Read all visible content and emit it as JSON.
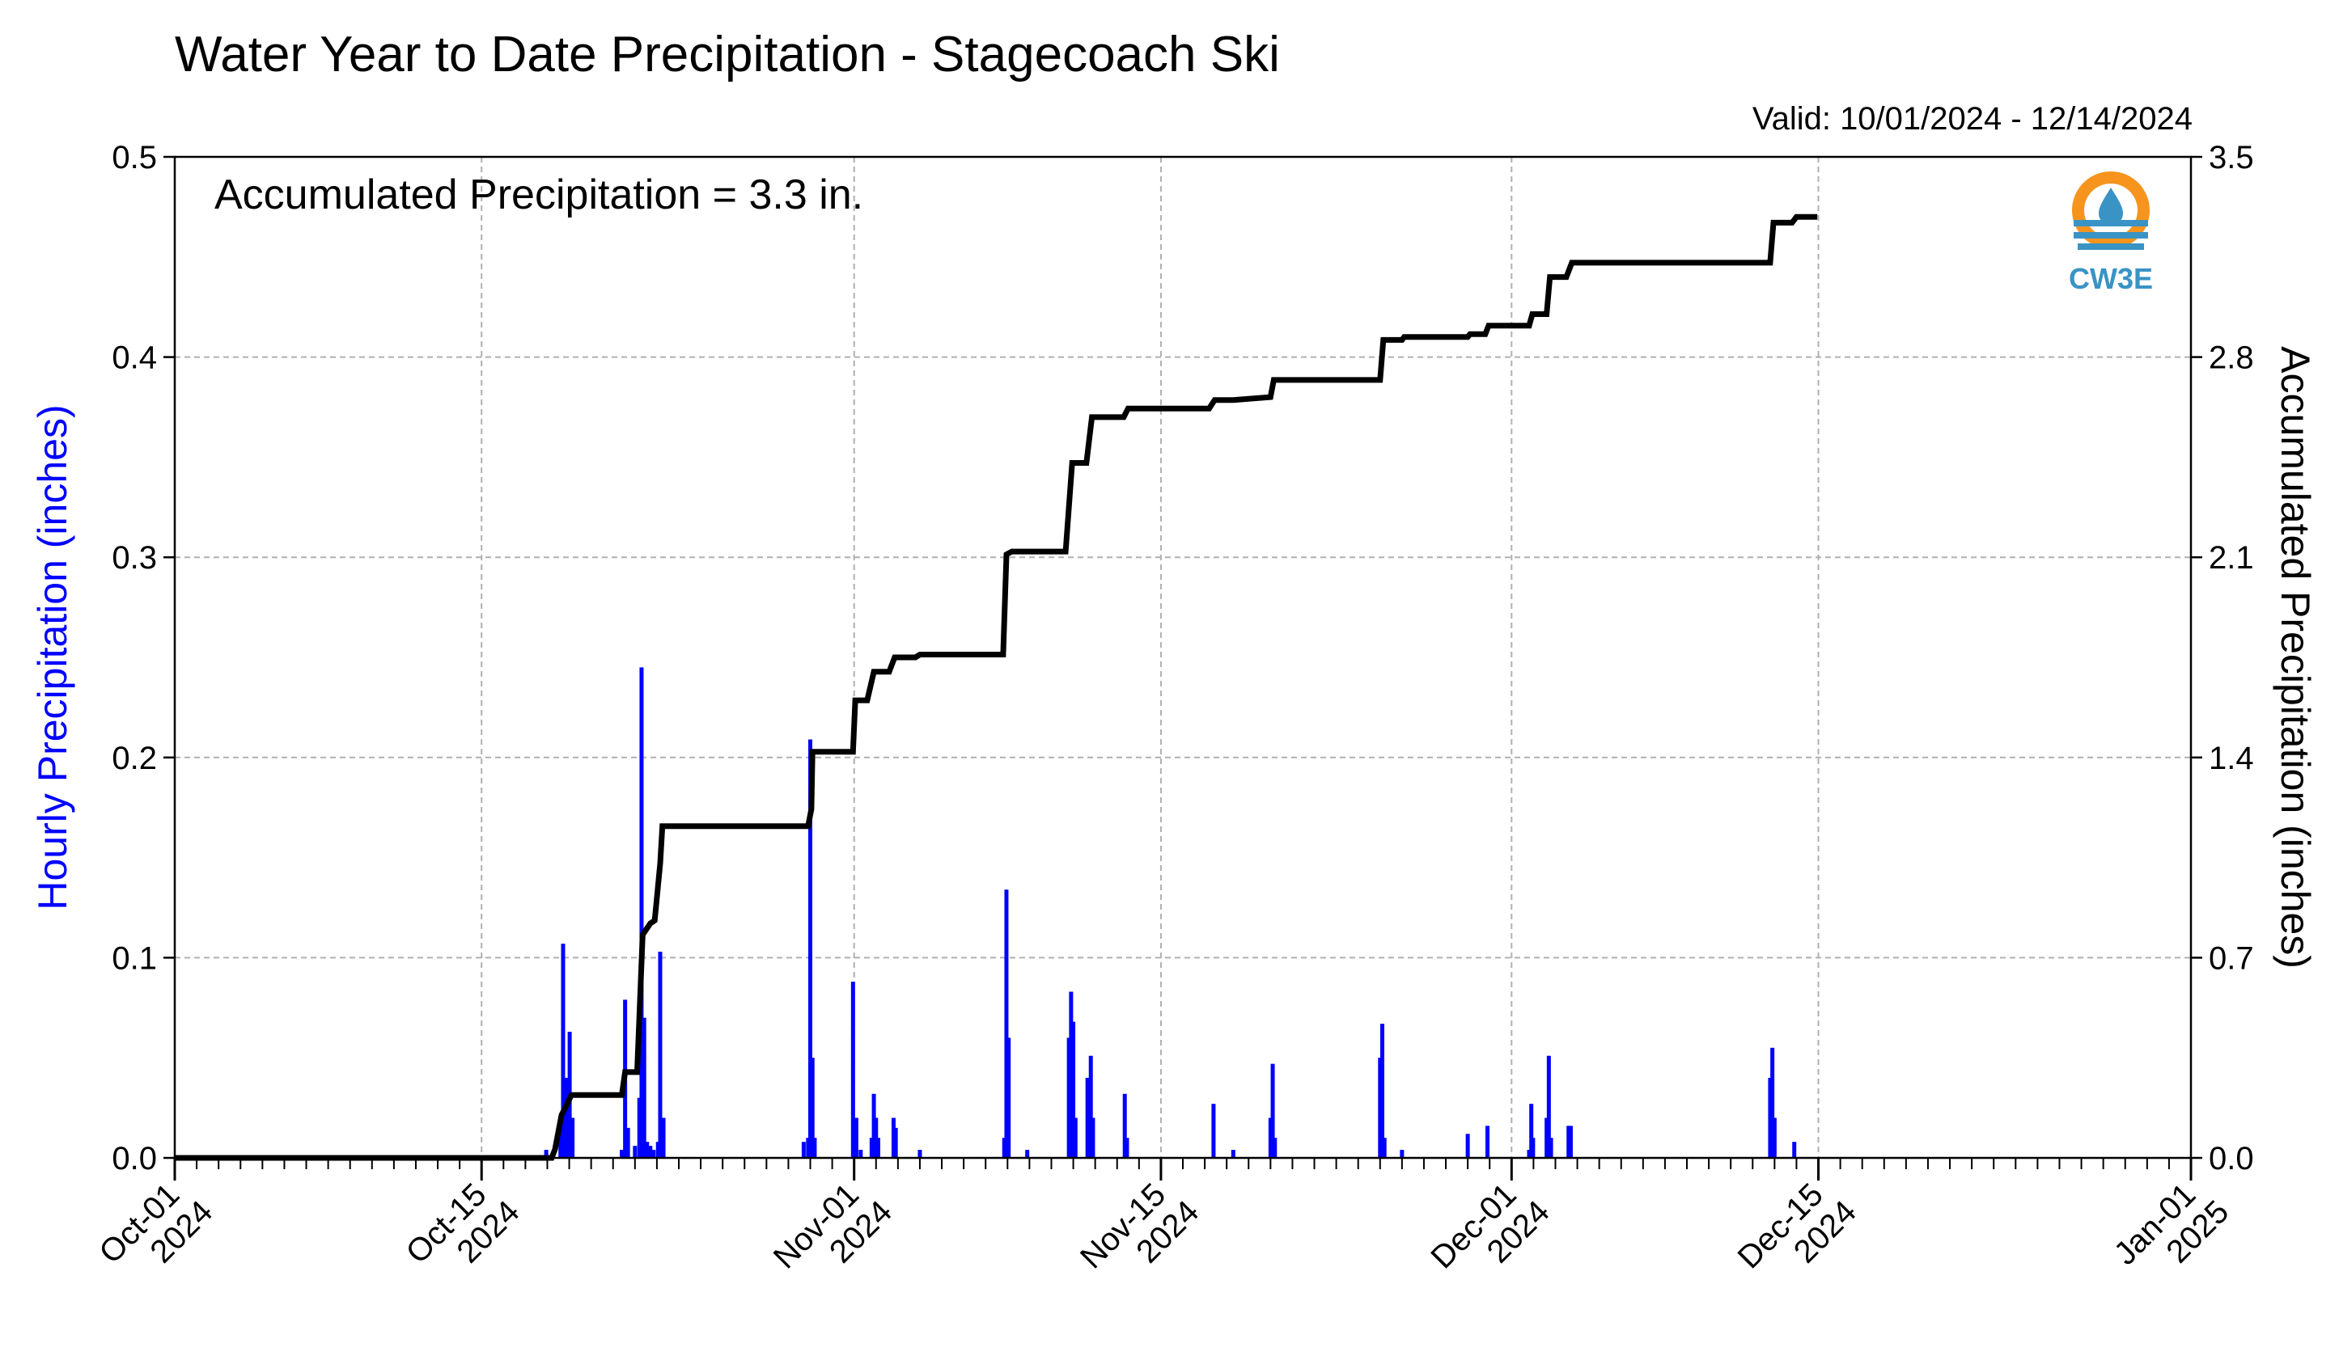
{
  "chart_data": {
    "type": "bar+line",
    "title": "Water Year to Date Precipitation - Stagecoach Ski",
    "valid_label": "Valid: 10/01/2024 - 12/14/2024",
    "annotation": "Accumulated Precipitation = 3.3 in.",
    "logo_text": "CW3E",
    "ylabel_left": "Hourly Precipitation (inches)",
    "ylabel_right": "Accumulated Precipitation (inches)",
    "ylim_left": [
      0,
      0.5
    ],
    "ylim_right": [
      0,
      3.5
    ],
    "xlim_days": [
      0,
      92
    ],
    "grid": true,
    "colors": {
      "bars": "#0000ff",
      "line": "#000000",
      "grid": "#b0b0b0",
      "logo_orange": "#f7941d",
      "logo_blue": "#3a93c5"
    },
    "left_ticks": [
      "0.0",
      "0.1",
      "0.2",
      "0.3",
      "0.4",
      "0.5"
    ],
    "right_ticks": [
      "0.0",
      "0.7",
      "1.4",
      "2.1",
      "2.8",
      "3.5"
    ],
    "x_ticks": [
      {
        "day": 0,
        "line1": "Oct-01",
        "line2": "2024"
      },
      {
        "day": 14,
        "line1": "Oct-15",
        "line2": "2024"
      },
      {
        "day": 31,
        "line1": "Nov-01",
        "line2": "2024"
      },
      {
        "day": 45,
        "line1": "Nov-15",
        "line2": "2024"
      },
      {
        "day": 61,
        "line1": "Dec-01",
        "line2": "2024"
      },
      {
        "day": 75,
        "line1": "Dec-15",
        "line2": "2024"
      },
      {
        "day": 92,
        "line1": "Jan-01",
        "line2": "2025"
      }
    ],
    "series": [
      {
        "name": "Hourly Precipitation",
        "kind": "bar",
        "points": [
          [
            16.95,
            0.004
          ],
          [
            17.6,
            0.015
          ],
          [
            17.72,
            0.107
          ],
          [
            17.85,
            0.04
          ],
          [
            18.02,
            0.063
          ],
          [
            18.15,
            0.02
          ],
          [
            20.4,
            0.004
          ],
          [
            20.55,
            0.079
          ],
          [
            20.68,
            0.015
          ],
          [
            21.0,
            0.006
          ],
          [
            21.2,
            0.03
          ],
          [
            21.3,
            0.245
          ],
          [
            21.42,
            0.07
          ],
          [
            21.55,
            0.008
          ],
          [
            21.7,
            0.006
          ],
          [
            21.85,
            0.004
          ],
          [
            22.05,
            0.008
          ],
          [
            22.15,
            0.103
          ],
          [
            22.3,
            0.02
          ],
          [
            28.7,
            0.008
          ],
          [
            28.9,
            0.01
          ],
          [
            29.0,
            0.209
          ],
          [
            29.1,
            0.05
          ],
          [
            29.2,
            0.01
          ],
          [
            30.95,
            0.088
          ],
          [
            31.1,
            0.02
          ],
          [
            31.3,
            0.004
          ],
          [
            31.8,
            0.01
          ],
          [
            31.9,
            0.032
          ],
          [
            32.0,
            0.02
          ],
          [
            32.1,
            0.01
          ],
          [
            32.8,
            0.02
          ],
          [
            32.9,
            0.015
          ],
          [
            34.0,
            0.004
          ],
          [
            37.85,
            0.01
          ],
          [
            37.95,
            0.134
          ],
          [
            38.05,
            0.06
          ],
          [
            38.9,
            0.004
          ],
          [
            40.8,
            0.06
          ],
          [
            40.9,
            0.083
          ],
          [
            41.0,
            0.068
          ],
          [
            41.1,
            0.02
          ],
          [
            41.65,
            0.04
          ],
          [
            41.8,
            0.051
          ],
          [
            41.9,
            0.02
          ],
          [
            43.35,
            0.032
          ],
          [
            43.45,
            0.01
          ],
          [
            47.4,
            0.027
          ],
          [
            48.3,
            0.004
          ],
          [
            50.0,
            0.02
          ],
          [
            50.1,
            0.047
          ],
          [
            50.2,
            0.01
          ],
          [
            55.0,
            0.05
          ],
          [
            55.1,
            0.067
          ],
          [
            55.2,
            0.01
          ],
          [
            56.0,
            0.004
          ],
          [
            59.0,
            0.012
          ],
          [
            59.9,
            0.016
          ],
          [
            61.8,
            0.004
          ],
          [
            61.9,
            0.027
          ],
          [
            61.98,
            0.01
          ],
          [
            62.6,
            0.02
          ],
          [
            62.7,
            0.051
          ],
          [
            62.8,
            0.01
          ],
          [
            63.6,
            0.016
          ],
          [
            63.7,
            0.016
          ],
          [
            72.8,
            0.04
          ],
          [
            72.9,
            0.055
          ],
          [
            73.0,
            0.02
          ],
          [
            73.9,
            0.008
          ]
        ]
      },
      {
        "name": "Accumulated Precipitation",
        "kind": "step",
        "points": [
          [
            0,
            0
          ],
          [
            17.2,
            0
          ],
          [
            17.35,
            0.03
          ],
          [
            17.65,
            0.15
          ],
          [
            17.85,
            0.18
          ],
          [
            18.1,
            0.22
          ],
          [
            20.4,
            0.22
          ],
          [
            20.55,
            0.3
          ],
          [
            21.1,
            0.3
          ],
          [
            21.35,
            0.78
          ],
          [
            21.7,
            0.82
          ],
          [
            21.9,
            0.83
          ],
          [
            22.15,
            1.03
          ],
          [
            22.25,
            1.16
          ],
          [
            28.9,
            1.16
          ],
          [
            29.05,
            1.22
          ],
          [
            29.1,
            1.42
          ],
          [
            30.95,
            1.42
          ],
          [
            31.05,
            1.6
          ],
          [
            31.6,
            1.6
          ],
          [
            31.9,
            1.7
          ],
          [
            32.6,
            1.7
          ],
          [
            32.85,
            1.75
          ],
          [
            33.8,
            1.75
          ],
          [
            34.0,
            1.76
          ],
          [
            37.8,
            1.76
          ],
          [
            37.95,
            2.11
          ],
          [
            38.2,
            2.12
          ],
          [
            40.65,
            2.12
          ],
          [
            40.95,
            2.43
          ],
          [
            41.6,
            2.43
          ],
          [
            41.85,
            2.59
          ],
          [
            43.3,
            2.59
          ],
          [
            43.5,
            2.62
          ],
          [
            47.2,
            2.62
          ],
          [
            47.45,
            2.65
          ],
          [
            48.3,
            2.65
          ],
          [
            50.0,
            2.66
          ],
          [
            50.15,
            2.72
          ],
          [
            55.0,
            2.72
          ],
          [
            55.15,
            2.86
          ],
          [
            56.0,
            2.86
          ],
          [
            56.1,
            2.87
          ],
          [
            59.0,
            2.87
          ],
          [
            59.1,
            2.88
          ],
          [
            59.8,
            2.88
          ],
          [
            59.95,
            2.91
          ],
          [
            61.8,
            2.91
          ],
          [
            61.95,
            2.95
          ],
          [
            62.6,
            2.95
          ],
          [
            62.75,
            3.08
          ],
          [
            63.5,
            3.08
          ],
          [
            63.75,
            3.13
          ],
          [
            72.8,
            3.13
          ],
          [
            72.95,
            3.27
          ],
          [
            73.8,
            3.27
          ],
          [
            74.0,
            3.29
          ],
          [
            74.95,
            3.29
          ]
        ]
      }
    ]
  }
}
